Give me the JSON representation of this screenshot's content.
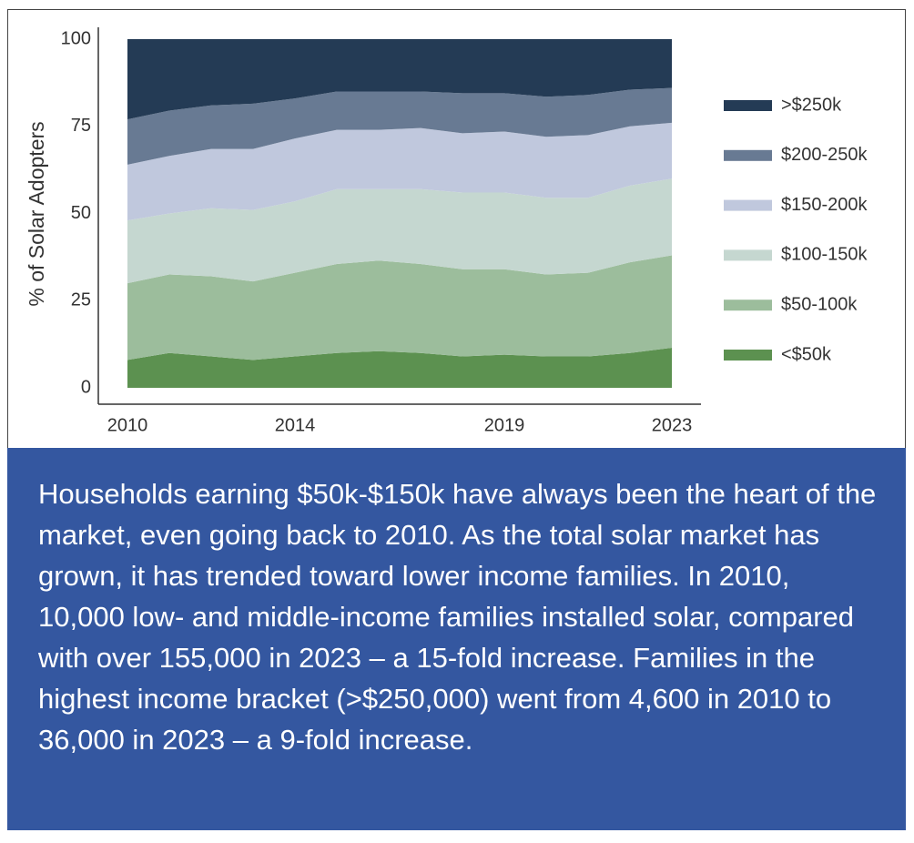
{
  "chart_data": {
    "type": "stacked_area",
    "y_label": "% of Solar Adopters",
    "x": [
      2010,
      2011,
      2012,
      2013,
      2014,
      2015,
      2016,
      2017,
      2018,
      2019,
      2020,
      2021,
      2022,
      2023
    ],
    "xlim": [
      2010,
      2023
    ],
    "xticks": [
      2010,
      2014,
      2019,
      2023
    ],
    "ylim": [
      0,
      100
    ],
    "yticks": [
      0,
      25,
      50,
      75,
      100
    ],
    "series": [
      {
        "name": "<$50k",
        "color": "#5c9150",
        "values": [
          8,
          10,
          9,
          8,
          9,
          10,
          10.5,
          10,
          9,
          9.5,
          9,
          9,
          10,
          11.5
        ]
      },
      {
        "name": "$50-100k",
        "color": "#9cbd9c",
        "values": [
          22,
          22.5,
          23,
          22.5,
          24,
          25.5,
          26,
          25.5,
          25,
          24.5,
          23.5,
          24,
          26,
          26.5
        ]
      },
      {
        "name": "$100-150k",
        "color": "#c5d7d0",
        "values": [
          18,
          17.5,
          19.5,
          20.5,
          20.5,
          21.5,
          20.5,
          21.5,
          22,
          22,
          22,
          21.5,
          22,
          22
        ]
      },
      {
        "name": "$150-200k",
        "color": "#c0c8dd",
        "values": [
          16,
          16.5,
          17,
          17.5,
          18,
          17,
          17,
          17.5,
          17,
          17.5,
          17.5,
          18,
          17,
          16
        ]
      },
      {
        "name": "$200-250k",
        "color": "#687a93",
        "values": [
          13,
          13,
          12.5,
          13,
          11.5,
          11,
          11,
          10.5,
          11.5,
          11,
          11.5,
          11.5,
          10.5,
          10
        ]
      },
      {
        "name": ">$250k",
        "color": "#243b55",
        "values": [
          23,
          20.5,
          19,
          18.5,
          17,
          15,
          15,
          15,
          15.5,
          15.5,
          16.5,
          16,
          14.5,
          14
        ]
      }
    ]
  },
  "caption": "Households earning $50k-$150k have always been the heart of the market, even going back to 2010. As the total solar market has grown, it has trended toward lower income families. In 2010, 10,000 low- and middle-income families installed solar, compared with over 155,000 in 2023 – a 15-fold increase. Families in the highest income bracket (>$250,000) went from 4,600 in 2010 to 36,000 in 2023 – a 9-fold increase."
}
